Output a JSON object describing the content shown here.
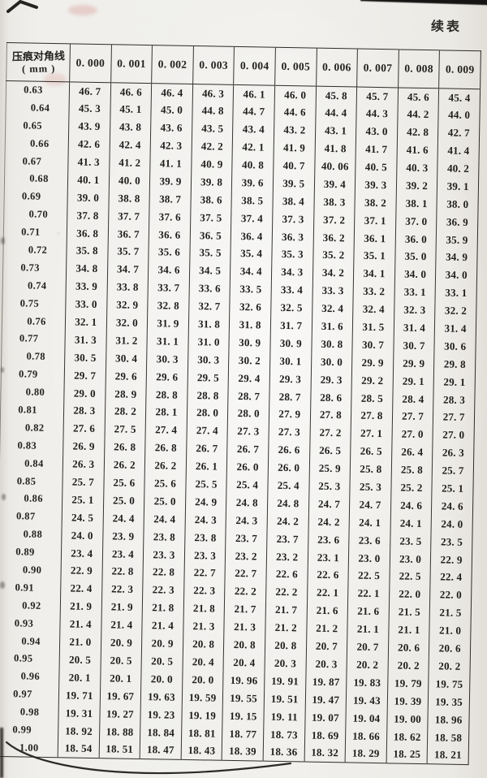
{
  "page": {
    "continued_label": "续表"
  },
  "colors": {
    "ink": "#1f1d1b",
    "paper": "#f1f0ed",
    "smudge_pink": "#d0827c"
  },
  "table": {
    "row_header_title": "压痕对角线",
    "row_header_unit": "( mm )",
    "col_headers": [
      "0.000",
      "0.001",
      "0.002",
      "0.003",
      "0.004",
      "0.005",
      "0.006",
      "0.007",
      "0.008",
      "0.009"
    ],
    "rows": [
      {
        "label": "0.63",
        "values": [
          "46.7",
          "46.6",
          "46.4",
          "46.3",
          "46.1",
          "46.0",
          "45.8",
          "45.7",
          "45.6",
          "45.4"
        ]
      },
      {
        "label": "0.64",
        "values": [
          "45.3",
          "45.1",
          "45.0",
          "44.8",
          "44.7",
          "44.6",
          "44.4",
          "44.3",
          "44.2",
          "44.0"
        ]
      },
      {
        "label": "0.65",
        "values": [
          "43.9",
          "43.8",
          "43.6",
          "43.5",
          "43.4",
          "43.2",
          "43.1",
          "43.0",
          "42.8",
          "42.7"
        ]
      },
      {
        "label": "0.66",
        "values": [
          "42.6",
          "42.4",
          "42.3",
          "42.2",
          "42.1",
          "41.9",
          "41.8",
          "41.7",
          "41.6",
          "41.4"
        ]
      },
      {
        "label": "0.67",
        "values": [
          "41.3",
          "41.2",
          "41.1",
          "40.9",
          "40.8",
          "40.7",
          "40.06",
          "40.5",
          "40.3",
          "40.2"
        ]
      },
      {
        "label": "0.68",
        "values": [
          "40.1",
          "40.0",
          "39.9",
          "39.8",
          "39.6",
          "39.5",
          "39.4",
          "39.3",
          "39.2",
          "39.1"
        ]
      },
      {
        "label": "0.69",
        "values": [
          "39.0",
          "38.8",
          "38.7",
          "38.6",
          "38.5",
          "38.4",
          "38.3",
          "38.2",
          "38.1",
          "38.0"
        ]
      },
      {
        "label": "0.70",
        "values": [
          "37.8",
          "37.7",
          "37.6",
          "37.5",
          "37.4",
          "37.3",
          "37.2",
          "37.1",
          "37.0",
          "36.9"
        ]
      },
      {
        "label": "0.71",
        "values": [
          "36.8",
          "36.7",
          "36.6",
          "36.5",
          "36.4",
          "36.3",
          "36.2",
          "36.1",
          "36.0",
          "35.9"
        ]
      },
      {
        "label": "0.72",
        "values": [
          "35.8",
          "35.7",
          "35.6",
          "35.5",
          "35.4",
          "35.3",
          "35.2",
          "35.1",
          "35.0",
          "34.9"
        ]
      },
      {
        "label": "0.73",
        "values": [
          "34.8",
          "34.7",
          "34.6",
          "34.5",
          "34.4",
          "34.3",
          "34.2",
          "34.1",
          "34.0",
          "34.0"
        ]
      },
      {
        "label": "0.74",
        "values": [
          "33.9",
          "33.8",
          "33.7",
          "33.6",
          "33.5",
          "33.4",
          "33.3",
          "33.2",
          "33.1",
          "33.1"
        ]
      },
      {
        "label": "0.75",
        "values": [
          "33.0",
          "32.9",
          "32.8",
          "32.7",
          "32.6",
          "32.5",
          "32.4",
          "32.4",
          "32.3",
          "32.2"
        ]
      },
      {
        "label": "0.76",
        "values": [
          "32.1",
          "32.0",
          "31.9",
          "31.8",
          "31.8",
          "31.7",
          "31.6",
          "31.5",
          "31.4",
          "31.4"
        ]
      },
      {
        "label": "0.77",
        "values": [
          "31.3",
          "31.2",
          "31.1",
          "31.0",
          "30.9",
          "30.9",
          "30.8",
          "30.7",
          "30.7",
          "30.6"
        ]
      },
      {
        "label": "0.78",
        "values": [
          "30.5",
          "30.4",
          "30.3",
          "30.3",
          "30.2",
          "30.1",
          "30.0",
          "29.9",
          "29.9",
          "29.8"
        ]
      },
      {
        "label": "0.79",
        "values": [
          "29.7",
          "29.6",
          "29.6",
          "29.5",
          "29.4",
          "29.3",
          "29.3",
          "29.2",
          "29.1",
          "29.1"
        ]
      },
      {
        "label": "0.80",
        "values": [
          "29.0",
          "28.9",
          "28.8",
          "28.8",
          "28.7",
          "28.7",
          "28.6",
          "28.5",
          "28.4",
          "28.3"
        ]
      },
      {
        "label": "0.81",
        "values": [
          "28.3",
          "28.2",
          "28.1",
          "28.0",
          "28.0",
          "27.9",
          "27.8",
          "27.8",
          "27.7",
          "27.7"
        ]
      },
      {
        "label": "0.82",
        "values": [
          "27.6",
          "27.5",
          "27.4",
          "27.4",
          "27.3",
          "27.3",
          "27.2",
          "27.1",
          "27.0",
          "27.0"
        ]
      },
      {
        "label": "0.83",
        "values": [
          "26.9",
          "26.8",
          "26.8",
          "26.7",
          "26.7",
          "26.6",
          "26.5",
          "26.5",
          "26.4",
          "26.3"
        ]
      },
      {
        "label": "0.84",
        "values": [
          "26.3",
          "26.2",
          "26.2",
          "26.1",
          "26.0",
          "26.0",
          "25.9",
          "25.8",
          "25.8",
          "25.7"
        ]
      },
      {
        "label": "0.85",
        "values": [
          "25.7",
          "25.6",
          "25.6",
          "25.5",
          "25.4",
          "25.4",
          "25.3",
          "25.3",
          "25.2",
          "25.1"
        ]
      },
      {
        "label": "0.86",
        "values": [
          "25.1",
          "25.0",
          "25.0",
          "24.9",
          "24.8",
          "24.8",
          "24.7",
          "24.7",
          "24.6",
          "24.6"
        ]
      },
      {
        "label": "0.87",
        "values": [
          "24.5",
          "24.4",
          "24.4",
          "24.3",
          "24.3",
          "24.2",
          "24.2",
          "24.1",
          "24.1",
          "24.0"
        ]
      },
      {
        "label": "0.88",
        "values": [
          "24.0",
          "23.9",
          "23.8",
          "23.8",
          "23.7",
          "23.7",
          "23.6",
          "23.6",
          "23.5",
          "23.5"
        ]
      },
      {
        "label": "0.89",
        "values": [
          "23.4",
          "23.4",
          "23.3",
          "23.3",
          "23.2",
          "23.2",
          "23.1",
          "23.0",
          "23.0",
          "22.9"
        ]
      },
      {
        "label": "0.90",
        "values": [
          "22.9",
          "22.8",
          "22.8",
          "22.7",
          "22.7",
          "22.6",
          "22.6",
          "22.5",
          "22.5",
          "22.4"
        ]
      },
      {
        "label": "0.91",
        "values": [
          "22.4",
          "22.3",
          "22.3",
          "22.3",
          "22.2",
          "22.2",
          "22.1",
          "22.1",
          "22.0",
          "22.0"
        ]
      },
      {
        "label": "0.92",
        "values": [
          "21.9",
          "21.9",
          "21.8",
          "21.8",
          "21.7",
          "21.7",
          "21.6",
          "21.6",
          "21.5",
          "21.5"
        ]
      },
      {
        "label": "0.93",
        "values": [
          "21.4",
          "21.4",
          "21.4",
          "21.3",
          "21.3",
          "21.2",
          "21.2",
          "21.1",
          "21.1",
          "21.0"
        ]
      },
      {
        "label": "0.94",
        "values": [
          "21.0",
          "20.9",
          "20.9",
          "20.8",
          "20.8",
          "20.8",
          "20.7",
          "20.7",
          "20.6",
          "20.6"
        ]
      },
      {
        "label": "0.95",
        "values": [
          "20.5",
          "20.5",
          "20.5",
          "20.4",
          "20.4",
          "20.3",
          "20.3",
          "20.2",
          "20.2",
          "20.2"
        ]
      },
      {
        "label": "0.96",
        "values": [
          "20.1",
          "20.1",
          "20.0",
          "20.0",
          "19.96",
          "19.91",
          "19.87",
          "19.83",
          "19.79",
          "19.75"
        ]
      },
      {
        "label": "0.97",
        "values": [
          "19.71",
          "19.67",
          "19.63",
          "19.59",
          "19.55",
          "19.51",
          "19.47",
          "19.43",
          "19.39",
          "19.35"
        ]
      },
      {
        "label": "0.98",
        "values": [
          "19.31",
          "19.27",
          "19.23",
          "19.19",
          "19.15",
          "19.11",
          "19.07",
          "19.04",
          "19.00",
          "18.96"
        ]
      },
      {
        "label": "0.99",
        "values": [
          "18.92",
          "18.88",
          "18.84",
          "18.81",
          "18.77",
          "18.73",
          "18.69",
          "18.66",
          "18.62",
          "18.58"
        ]
      },
      {
        "label": "1.00",
        "values": [
          "18.54",
          "18.51",
          "18.47",
          "18.43",
          "18.39",
          "18.36",
          "18.32",
          "18.29",
          "18.25",
          "18.21"
        ]
      }
    ]
  }
}
